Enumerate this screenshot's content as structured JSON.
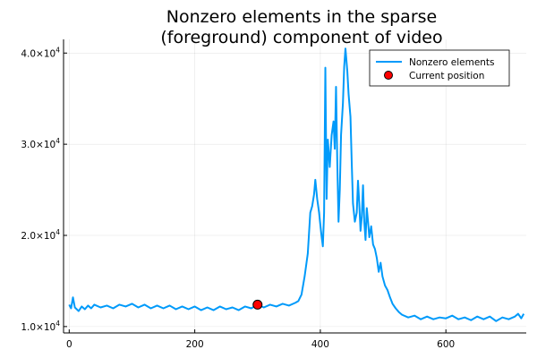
{
  "chart_data": {
    "type": "line",
    "title": [
      "Nonzero elements in the sparse",
      "(foreground) component of video"
    ],
    "xlabel": "",
    "ylabel": "",
    "xlim": [
      -9,
      728
    ],
    "ylim": [
      9300,
      41500
    ],
    "x_ticks": [
      0,
      200,
      400,
      600
    ],
    "y_ticks": [
      {
        "value": 10000,
        "mantissa": "1.0",
        "exponent": "4"
      },
      {
        "value": 20000,
        "mantissa": "2.0",
        "exponent": "4"
      },
      {
        "value": 30000,
        "mantissa": "3.0",
        "exponent": "4"
      },
      {
        "value": 40000,
        "mantissa": "4.0",
        "exponent": "4"
      }
    ],
    "grid": true,
    "legend_position": "top-right",
    "series": [
      {
        "name": "Nonzero elements",
        "color": "#009AFA",
        "points": [
          [
            0,
            12400
          ],
          [
            3,
            12000
          ],
          [
            6,
            13200
          ],
          [
            9,
            12100
          ],
          [
            12,
            11900
          ],
          [
            15,
            11700
          ],
          [
            20,
            12200
          ],
          [
            25,
            11900
          ],
          [
            30,
            12300
          ],
          [
            35,
            12000
          ],
          [
            40,
            12400
          ],
          [
            50,
            12100
          ],
          [
            60,
            12300
          ],
          [
            70,
            12000
          ],
          [
            80,
            12400
          ],
          [
            90,
            12200
          ],
          [
            100,
            12500
          ],
          [
            110,
            12100
          ],
          [
            120,
            12400
          ],
          [
            130,
            12000
          ],
          [
            140,
            12300
          ],
          [
            150,
            12000
          ],
          [
            160,
            12300
          ],
          [
            170,
            11900
          ],
          [
            180,
            12200
          ],
          [
            190,
            11900
          ],
          [
            200,
            12200
          ],
          [
            210,
            11800
          ],
          [
            220,
            12100
          ],
          [
            230,
            11800
          ],
          [
            240,
            12200
          ],
          [
            250,
            11900
          ],
          [
            260,
            12100
          ],
          [
            270,
            11800
          ],
          [
            280,
            12200
          ],
          [
            290,
            12000
          ],
          [
            300,
            12400
          ],
          [
            310,
            12100
          ],
          [
            320,
            12400
          ],
          [
            330,
            12200
          ],
          [
            340,
            12500
          ],
          [
            350,
            12300
          ],
          [
            360,
            12600
          ],
          [
            365,
            12800
          ],
          [
            370,
            13500
          ],
          [
            375,
            15500
          ],
          [
            380,
            18000
          ],
          [
            384,
            22500
          ],
          [
            387,
            23200
          ],
          [
            390,
            24500
          ],
          [
            392,
            26100
          ],
          [
            395,
            24000
          ],
          [
            398,
            22500
          ],
          [
            401,
            20500
          ],
          [
            404,
            18800
          ],
          [
            406,
            22500
          ],
          [
            408,
            38400
          ],
          [
            410,
            24000
          ],
          [
            412,
            30500
          ],
          [
            415,
            27500
          ],
          [
            418,
            31000
          ],
          [
            421,
            32500
          ],
          [
            423,
            29500
          ],
          [
            425,
            36300
          ],
          [
            427,
            28000
          ],
          [
            429,
            21500
          ],
          [
            431,
            25000
          ],
          [
            433,
            31000
          ],
          [
            436,
            34500
          ],
          [
            438,
            38500
          ],
          [
            440,
            40500
          ],
          [
            443,
            38000
          ],
          [
            445,
            35500
          ],
          [
            448,
            33000
          ],
          [
            450,
            28000
          ],
          [
            452,
            23500
          ],
          [
            455,
            21500
          ],
          [
            458,
            22500
          ],
          [
            460,
            26000
          ],
          [
            462,
            23500
          ],
          [
            464,
            20500
          ],
          [
            466,
            22000
          ],
          [
            468,
            25500
          ],
          [
            470,
            21500
          ],
          [
            472,
            19500
          ],
          [
            474,
            23000
          ],
          [
            476,
            21500
          ],
          [
            478,
            19800
          ],
          [
            481,
            21000
          ],
          [
            484,
            19000
          ],
          [
            487,
            18500
          ],
          [
            490,
            17500
          ],
          [
            493,
            16000
          ],
          [
            496,
            17000
          ],
          [
            499,
            15500
          ],
          [
            503,
            14500
          ],
          [
            507,
            14000
          ],
          [
            511,
            13200
          ],
          [
            515,
            12500
          ],
          [
            520,
            12000
          ],
          [
            525,
            11600
          ],
          [
            530,
            11300
          ],
          [
            540,
            11000
          ],
          [
            550,
            11200
          ],
          [
            560,
            10800
          ],
          [
            570,
            11100
          ],
          [
            580,
            10800
          ],
          [
            590,
            11000
          ],
          [
            600,
            10900
          ],
          [
            610,
            11200
          ],
          [
            620,
            10800
          ],
          [
            630,
            11000
          ],
          [
            640,
            10700
          ],
          [
            650,
            11100
          ],
          [
            660,
            10800
          ],
          [
            670,
            11100
          ],
          [
            680,
            10600
          ],
          [
            690,
            11000
          ],
          [
            700,
            10800
          ],
          [
            710,
            11100
          ],
          [
            715,
            11400
          ],
          [
            720,
            10900
          ],
          [
            724,
            11400
          ]
        ]
      }
    ],
    "markers": [
      {
        "name": "Current position",
        "color": "#FF0000",
        "x": 300,
        "y": 12400
      }
    ]
  }
}
